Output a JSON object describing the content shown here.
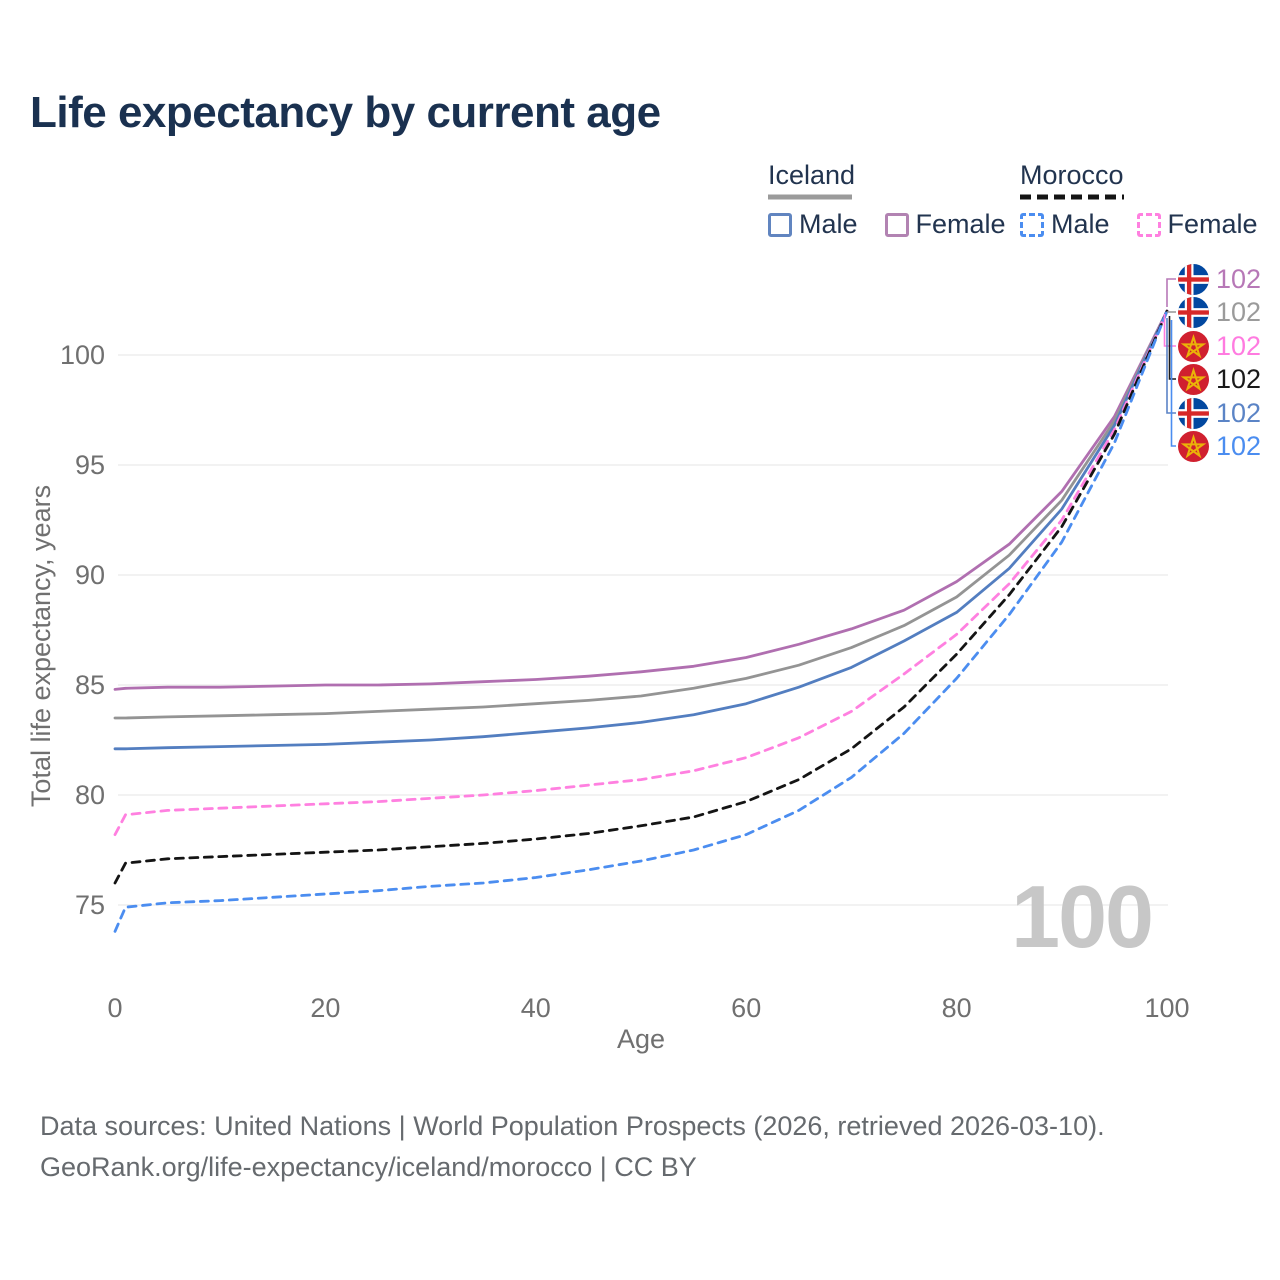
{
  "title": "Life expectancy by current age",
  "legend": {
    "groups": [
      {
        "title": "Iceland",
        "line_style": "solid",
        "sample_color": "#9b9b9b",
        "items": [
          {
            "label": "Male",
            "color": "#6185c0",
            "dashed": false
          },
          {
            "label": "Female",
            "color": "#b283b2",
            "dashed": false
          }
        ]
      },
      {
        "title": "Morocco",
        "line_style": "dashed",
        "sample_color": "#141414",
        "items": [
          {
            "label": "Male",
            "color": "#4b8df0",
            "dashed": true
          },
          {
            "label": "Female",
            "color": "#ff80e0",
            "dashed": true
          }
        ]
      }
    ]
  },
  "chart_data": {
    "type": "line",
    "title": "Life expectancy by current age",
    "xlabel": "Age",
    "ylabel": "Total life expectancy, years",
    "x_ticks": [
      0,
      20,
      40,
      60,
      80,
      100
    ],
    "y_ticks": [
      75,
      80,
      85,
      90,
      95,
      100
    ],
    "xlim": [
      0,
      100
    ],
    "ylim": [
      73,
      103
    ],
    "grid": "horizontal",
    "legend_position": "top-right",
    "x": [
      0,
      1,
      5,
      10,
      15,
      20,
      25,
      30,
      35,
      40,
      45,
      50,
      55,
      60,
      65,
      70,
      75,
      80,
      85,
      90,
      95,
      100
    ],
    "series": [
      {
        "name": "Iceland Female",
        "country": "Iceland",
        "group": "Female",
        "color": "#b06fb0",
        "dashed": false,
        "values": [
          84.8,
          84.85,
          84.9,
          84.9,
          84.95,
          85.0,
          85.0,
          85.05,
          85.15,
          85.25,
          85.4,
          85.6,
          85.85,
          86.25,
          86.85,
          87.55,
          88.4,
          89.7,
          91.4,
          93.8,
          97.2,
          102
        ]
      },
      {
        "name": "Iceland All",
        "country": "Iceland",
        "group": "All",
        "color": "#949494",
        "dashed": false,
        "values": [
          83.5,
          83.5,
          83.55,
          83.6,
          83.65,
          83.7,
          83.8,
          83.9,
          84.0,
          84.15,
          84.3,
          84.5,
          84.85,
          85.3,
          85.9,
          86.7,
          87.7,
          89.0,
          90.9,
          93.4,
          97.0,
          102
        ]
      },
      {
        "name": "Iceland Male",
        "country": "Iceland",
        "group": "Male",
        "color": "#537ec0",
        "dashed": false,
        "values": [
          82.1,
          82.1,
          82.15,
          82.2,
          82.25,
          82.3,
          82.4,
          82.5,
          82.65,
          82.85,
          83.05,
          83.3,
          83.65,
          84.15,
          84.9,
          85.8,
          87.0,
          88.3,
          90.3,
          93.0,
          96.8,
          102
        ]
      },
      {
        "name": "Morocco Female",
        "country": "Morocco",
        "group": "Female",
        "color": "#ff80e0",
        "dashed": true,
        "values": [
          78.2,
          79.1,
          79.3,
          79.4,
          79.5,
          79.6,
          79.7,
          79.85,
          80.0,
          80.2,
          80.45,
          80.7,
          81.1,
          81.7,
          82.6,
          83.8,
          85.5,
          87.3,
          89.6,
          92.5,
          96.6,
          102
        ]
      },
      {
        "name": "Morocco All",
        "country": "Morocco",
        "group": "All",
        "color": "#141414",
        "dashed": true,
        "values": [
          76.0,
          76.9,
          77.1,
          77.2,
          77.3,
          77.4,
          77.5,
          77.65,
          77.8,
          78.0,
          78.25,
          78.6,
          79.0,
          79.7,
          80.7,
          82.1,
          84.0,
          86.4,
          89.1,
          92.2,
          96.4,
          102
        ]
      },
      {
        "name": "Morocco Male",
        "country": "Morocco",
        "group": "Male",
        "color": "#4b8df0",
        "dashed": true,
        "values": [
          73.8,
          74.9,
          75.1,
          75.2,
          75.35,
          75.5,
          75.65,
          75.85,
          76.0,
          76.25,
          76.6,
          77.0,
          77.5,
          78.2,
          79.3,
          80.8,
          82.8,
          85.3,
          88.2,
          91.5,
          96.0,
          102
        ]
      }
    ],
    "end_labels": [
      {
        "flag": "iceland",
        "value": "102",
        "color": "#b778b7",
        "series": "Iceland Female"
      },
      {
        "flag": "iceland",
        "value": "102",
        "color": "#9b9b9b",
        "series": "Iceland All"
      },
      {
        "flag": "morocco",
        "value": "102",
        "color": "#ff7be0",
        "series": "Morocco Female"
      },
      {
        "flag": "morocco",
        "value": "102",
        "color": "#1a1a1a",
        "series": "Morocco All"
      },
      {
        "flag": "iceland",
        "value": "102",
        "color": "#5b84c6",
        "series": "Iceland Male"
      },
      {
        "flag": "morocco",
        "value": "102",
        "color": "#4b8df0",
        "series": "Morocco Male"
      }
    ],
    "age_counter": "100"
  },
  "footer": {
    "line1": "Data sources: United Nations | World Population Prospects (2026, retrieved 2026-03-10).",
    "line2": "GeoRank.org/life-expectancy/iceland/morocco | CC BY"
  },
  "colors": {
    "title_text": "#1a3150",
    "axis_text": "#707070",
    "gridline": "#ededed",
    "watermark": "#c7c7c7",
    "iceland_flag_blue": "#0248a0",
    "iceland_flag_red": "#d72828",
    "morocco_flag_red": "#d0202f",
    "morocco_star_gold": "#eab308"
  }
}
